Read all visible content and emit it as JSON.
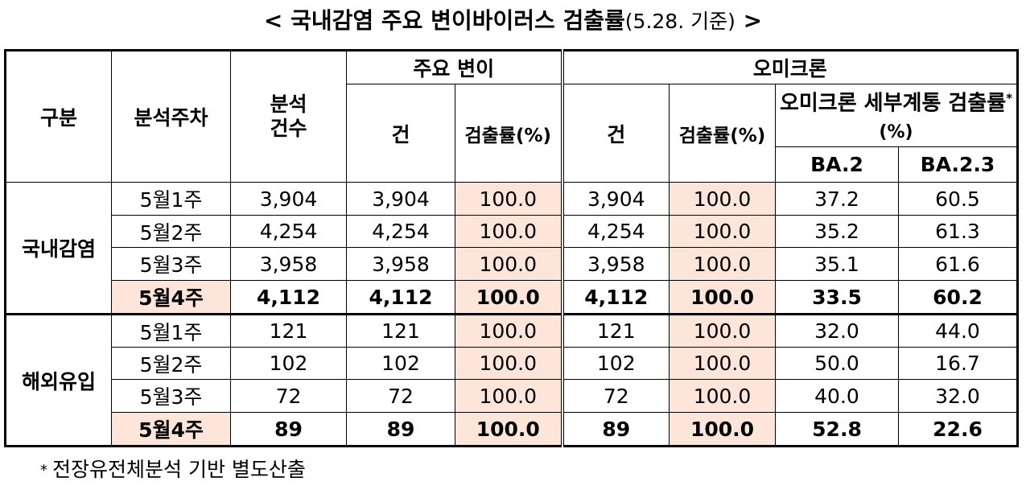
{
  "title": {
    "prefix": "< ",
    "main": "국내감염 주요 변이바이러스 검출률",
    "date": "(5.28. 기준)",
    "suffix": " >"
  },
  "headers": {
    "category": "구분",
    "week": "분석주차",
    "count": "분석\n건수",
    "major_variant": "주요 변이",
    "omicron": "오미크론",
    "cases": "건",
    "rate": "검출률(%)",
    "sublineage": "오미크론 세부계통 검출률",
    "sublineage_mark": "*",
    "sublineage_unit": "(%)",
    "ba2": "BA.2",
    "ba23": "BA.2.3"
  },
  "groups": [
    {
      "name": "국내감염",
      "rows": [
        {
          "week": "5월1주",
          "count": "3,904",
          "v_cases": "3,904",
          "v_rate": "100.0",
          "o_cases": "3,904",
          "o_rate": "100.0",
          "ba2": "37.2",
          "ba23": "60.5"
        },
        {
          "week": "5월2주",
          "count": "4,254",
          "v_cases": "4,254",
          "v_rate": "100.0",
          "o_cases": "4,254",
          "o_rate": "100.0",
          "ba2": "35.2",
          "ba23": "61.3"
        },
        {
          "week": "5월3주",
          "count": "3,958",
          "v_cases": "3,958",
          "v_rate": "100.0",
          "o_cases": "3,958",
          "o_rate": "100.0",
          "ba2": "35.1",
          "ba23": "61.6"
        },
        {
          "week": "5월4주",
          "count": "4,112",
          "v_cases": "4,112",
          "v_rate": "100.0",
          "o_cases": "4,112",
          "o_rate": "100.0",
          "ba2": "33.5",
          "ba23": "60.2"
        }
      ]
    },
    {
      "name": "해외유입",
      "rows": [
        {
          "week": "5월1주",
          "count": "121",
          "v_cases": "121",
          "v_rate": "100.0",
          "o_cases": "121",
          "o_rate": "100.0",
          "ba2": "32.0",
          "ba23": "44.0"
        },
        {
          "week": "5월2주",
          "count": "102",
          "v_cases": "102",
          "v_rate": "100.0",
          "o_cases": "102",
          "o_rate": "100.0",
          "ba2": "50.0",
          "ba23": "16.7"
        },
        {
          "week": "5월3주",
          "count": "72",
          "v_cases": "72",
          "v_rate": "100.0",
          "o_cases": "72",
          "o_rate": "100.0",
          "ba2": "40.0",
          "ba23": "32.0"
        },
        {
          "week": "5월4주",
          "count": "89",
          "v_cases": "89",
          "v_rate": "100.0",
          "o_cases": "89",
          "o_rate": "100.0",
          "ba2": "52.8",
          "ba23": "22.6"
        }
      ]
    }
  ],
  "footnote": {
    "mark": "*",
    "text": "전장유전체분석 기반 별도산출"
  },
  "colors": {
    "highlight": "#fde5d9",
    "border": "#000000"
  }
}
